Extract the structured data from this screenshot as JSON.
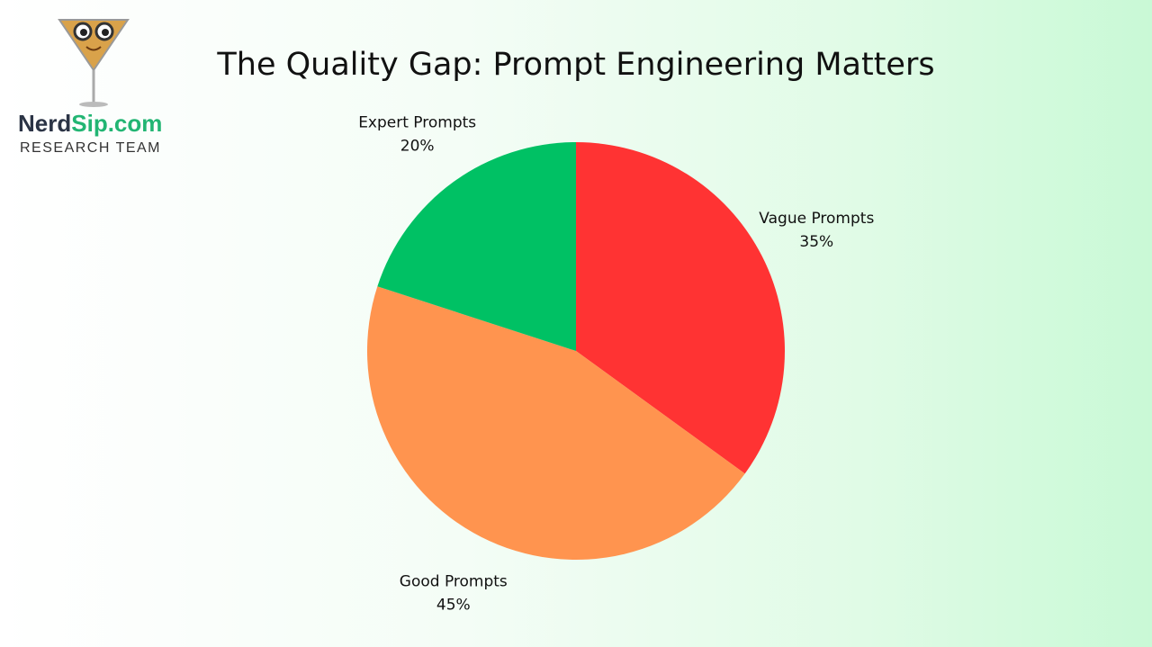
{
  "logo": {
    "brand_part1": "Nerd",
    "brand_part2": "Sip.com",
    "subtitle": "RESEARCH TEAM"
  },
  "chart_data": {
    "type": "pie",
    "title": "The Quality Gap: Prompt Engineering Matters",
    "start_angle": "top",
    "direction": "clockwise",
    "slices": [
      {
        "label": "Vague Prompts",
        "value": 35,
        "display": "35%",
        "color": "#FF3333"
      },
      {
        "label": "Good Prompts",
        "value": 45,
        "display": "45%",
        "color": "#FF944F"
      },
      {
        "label": "Expert Prompts",
        "value": 20,
        "display": "20%",
        "color": "#00C164"
      }
    ]
  }
}
